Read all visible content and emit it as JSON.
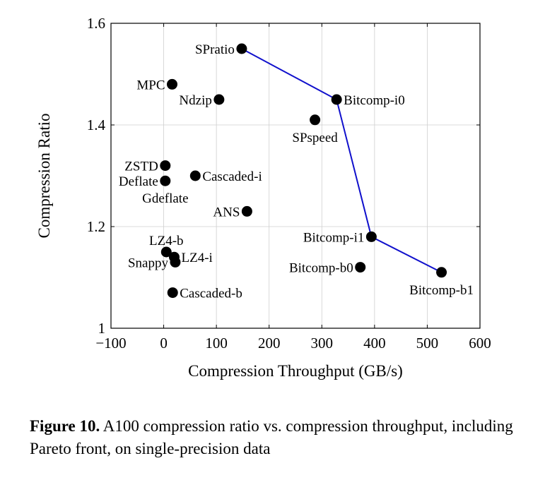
{
  "chart_data": {
    "type": "scatter",
    "title": "",
    "xlabel": "Compression Throughput (GB/s)",
    "ylabel": "Compression Ratio",
    "xlim": [
      -100,
      600
    ],
    "ylim": [
      1,
      1.6
    ],
    "xticks": [
      -100,
      0,
      100,
      200,
      300,
      400,
      500,
      600
    ],
    "xtick_labels": [
      "−100",
      "0",
      "100",
      "200",
      "300",
      "400",
      "500",
      "600"
    ],
    "yticks": [
      1,
      1.2,
      1.4,
      1.6
    ],
    "ytick_labels": [
      "1",
      "1.2",
      "1.4",
      "1.6"
    ],
    "grid": true,
    "points": [
      {
        "name": "SPratio",
        "x": 148,
        "y": 1.55,
        "label_pos": "left"
      },
      {
        "name": "MPC",
        "x": 16,
        "y": 1.48,
        "label_pos": "left"
      },
      {
        "name": "Ndzip",
        "x": 105,
        "y": 1.45,
        "label_pos": "left"
      },
      {
        "name": "Bitcomp-i0",
        "x": 328,
        "y": 1.45,
        "label_pos": "right"
      },
      {
        "name": "SPspeed",
        "x": 287,
        "y": 1.41,
        "label_pos": "below"
      },
      {
        "name": "ZSTD",
        "x": 3,
        "y": 1.32,
        "label_pos": "left"
      },
      {
        "name": "Cascaded-i",
        "x": 60,
        "y": 1.3,
        "label_pos": "right"
      },
      {
        "name": "Deflate",
        "x": 3,
        "y": 1.29,
        "label_pos": "left"
      },
      {
        "name": "Gdeflate",
        "x": 3,
        "y": 1.29,
        "label_pos": "below"
      },
      {
        "name": "ANS",
        "x": 158,
        "y": 1.23,
        "label_pos": "left"
      },
      {
        "name": "Bitcomp-i1",
        "x": 394,
        "y": 1.18,
        "label_pos": "left"
      },
      {
        "name": "LZ4-b",
        "x": 5,
        "y": 1.15,
        "label_pos": "above"
      },
      {
        "name": "LZ4-i",
        "x": 20,
        "y": 1.14,
        "label_pos": "right"
      },
      {
        "name": "Snappy",
        "x": 22,
        "y": 1.13,
        "label_pos": "left"
      },
      {
        "name": "Bitcomp-b0",
        "x": 373,
        "y": 1.12,
        "label_pos": "left"
      },
      {
        "name": "Bitcomp-b1",
        "x": 527,
        "y": 1.11,
        "label_pos": "below"
      },
      {
        "name": "Cascaded-b",
        "x": 17,
        "y": 1.07,
        "label_pos": "right"
      }
    ],
    "pareto_front": {
      "name": "Pareto front",
      "x": [
        148,
        328,
        394,
        527
      ],
      "y": [
        1.55,
        1.45,
        1.18,
        1.11
      ]
    },
    "colors": {
      "line": "#1010cc",
      "point": "#000000",
      "grid": "#cfcfcf",
      "axis": "#000000"
    }
  },
  "caption": {
    "label": "Figure 10.",
    "text": "A100 compression ratio vs. compression throughput, including Pareto front, on single-precision data"
  }
}
